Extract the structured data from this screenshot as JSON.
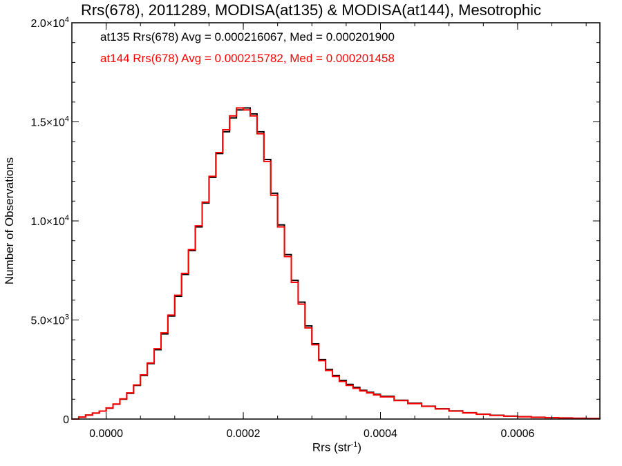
{
  "chart_data": {
    "type": "line",
    "title": "Rrs(678), 2011289, MODISA(at135) & MODISA(at144), Mesotrophic",
    "xlabel": "Rrs (str",
    "xlabel_sup": "-1",
    "xlabel_end": ")",
    "ylabel": "Number of Observations",
    "xlim": [
      -5e-05,
      0.00072
    ],
    "ylim": [
      0,
      20000
    ],
    "x_ticks": [
      0,
      0.0002,
      0.0004,
      0.0006
    ],
    "x_tick_labels": [
      "0.0000",
      "0.0002",
      "0.0004",
      "0.0006"
    ],
    "y_ticks": [
      0,
      5000,
      10000,
      15000,
      20000
    ],
    "y_tick_labels": [
      {
        "base": "0",
        "exp": ""
      },
      {
        "base": "5.0×10",
        "exp": "3"
      },
      {
        "base": "1.0×10",
        "exp": "4"
      },
      {
        "base": "1.5×10",
        "exp": "4"
      },
      {
        "base": "2.0×10",
        "exp": "4"
      }
    ],
    "annotations": [
      "at135 Rrs(678) Avg = 0.000216067, Med = 0.000201900",
      "at144 Rrs(678) Avg = 0.000215782, Med = 0.000201458"
    ],
    "grid": false,
    "series": [
      {
        "color": "#000000",
        "x": [
          -5e-05,
          -4e-05,
          -3e-05,
          -2e-05,
          -1e-05,
          0,
          1e-05,
          2e-05,
          3e-05,
          4e-05,
          5e-05,
          6e-05,
          7e-05,
          8e-05,
          9e-05,
          0.0001,
          0.00011,
          0.00012,
          0.00013,
          0.00014,
          0.00015,
          0.00016,
          0.00017,
          0.00018,
          0.00019,
          0.0002,
          0.00021,
          0.00022,
          0.00023,
          0.00024,
          0.00025,
          0.00026,
          0.00027,
          0.00028,
          0.00029,
          0.0003,
          0.00031,
          0.00032,
          0.00033,
          0.00034,
          0.00035,
          0.00036,
          0.00037,
          0.00038,
          0.00039,
          0.0004,
          0.00042,
          0.00044,
          0.00046,
          0.00048,
          0.0005,
          0.00052,
          0.00054,
          0.00056,
          0.00058,
          0.0006,
          0.00062,
          0.00064,
          0.00066,
          0.00068,
          0.0007,
          0.00072
        ],
        "y": [
          0,
          100,
          200,
          300,
          400,
          550,
          750,
          1000,
          1300,
          1700,
          2200,
          2800,
          3500,
          4300,
          5200,
          6200,
          7300,
          8500,
          9700,
          10900,
          12200,
          13400,
          14500,
          15200,
          15600,
          15700,
          15400,
          14500,
          13100,
          11400,
          9800,
          8300,
          7000,
          5900,
          4700,
          3800,
          3000,
          2500,
          2200,
          1950,
          1750,
          1600,
          1450,
          1350,
          1250,
          1150,
          950,
          800,
          650,
          520,
          410,
          320,
          250,
          190,
          150,
          120,
          90,
          70,
          55,
          40,
          30,
          20
        ]
      },
      {
        "color": "#ff0000",
        "x": [
          -5e-05,
          -4e-05,
          -3e-05,
          -2e-05,
          -1e-05,
          0,
          1e-05,
          2e-05,
          3e-05,
          4e-05,
          5e-05,
          6e-05,
          7e-05,
          8e-05,
          9e-05,
          0.0001,
          0.00011,
          0.00012,
          0.00013,
          0.00014,
          0.00015,
          0.00016,
          0.00017,
          0.00018,
          0.00019,
          0.0002,
          0.00021,
          0.00022,
          0.00023,
          0.00024,
          0.00025,
          0.00026,
          0.00027,
          0.00028,
          0.00029,
          0.0003,
          0.00031,
          0.00032,
          0.00033,
          0.00034,
          0.00035,
          0.00036,
          0.00037,
          0.00038,
          0.00039,
          0.0004,
          0.00042,
          0.00044,
          0.00046,
          0.00048,
          0.0005,
          0.00052,
          0.00054,
          0.00056,
          0.00058,
          0.0006,
          0.00062,
          0.00064,
          0.00066,
          0.00068,
          0.0007,
          0.00072
        ],
        "y": [
          0,
          100,
          200,
          300,
          400,
          560,
          760,
          1020,
          1320,
          1720,
          2230,
          2830,
          3550,
          4350,
          5250,
          6250,
          7350,
          8550,
          9750,
          10950,
          12250,
          13450,
          14600,
          15300,
          15700,
          15600,
          15300,
          14400,
          13000,
          11300,
          9700,
          8200,
          6900,
          5800,
          4600,
          3750,
          2950,
          2450,
          2150,
          1900,
          1700,
          1550,
          1420,
          1320,
          1220,
          1120,
          930,
          780,
          640,
          510,
          400,
          310,
          240,
          185,
          145,
          115,
          88,
          68,
          52,
          38,
          28,
          18
        ]
      }
    ]
  }
}
